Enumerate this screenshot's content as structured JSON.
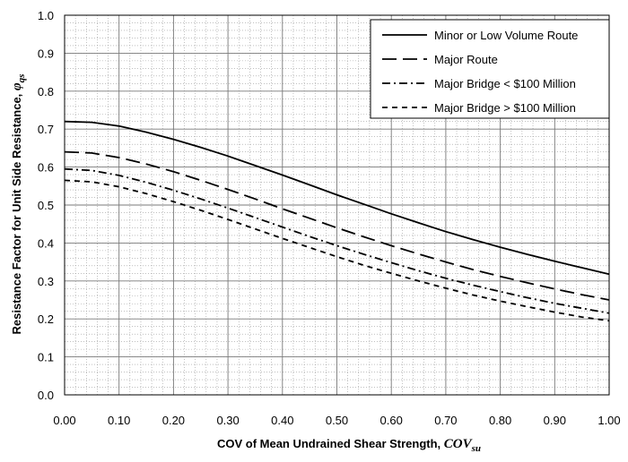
{
  "chart_data": {
    "type": "line",
    "xlabel": "COV of Mean Undrained Shear Strength, ",
    "xlabel_symbol": "COV",
    "xlabel_subscript": "su",
    "ylabel": "Resistance Factor for Unit Side Resistance, ",
    "ylabel_symbol": "φ",
    "ylabel_subscript": "qs",
    "xlim": [
      0.0,
      1.0
    ],
    "ylim": [
      0.0,
      1.0
    ],
    "x_ticks": [
      "0.00",
      "0.10",
      "0.20",
      "0.30",
      "0.40",
      "0.50",
      "0.60",
      "0.70",
      "0.80",
      "0.90",
      "1.00"
    ],
    "y_ticks": [
      "0.0",
      "0.1",
      "0.2",
      "0.3",
      "0.4",
      "0.5",
      "0.6",
      "0.7",
      "0.8",
      "0.9",
      "1.0"
    ],
    "grid": true,
    "legend_position": "top-right",
    "x": [
      0.0,
      0.05,
      0.1,
      0.15,
      0.2,
      0.25,
      0.3,
      0.35,
      0.4,
      0.45,
      0.5,
      0.55,
      0.6,
      0.65,
      0.7,
      0.75,
      0.8,
      0.85,
      0.9,
      0.95,
      1.0
    ],
    "series": [
      {
        "name": "Minor or Low Volume Route",
        "dash": "solid",
        "values": [
          0.72,
          0.718,
          0.708,
          0.692,
          0.673,
          0.652,
          0.629,
          0.604,
          0.579,
          0.553,
          0.527,
          0.502,
          0.477,
          0.453,
          0.43,
          0.409,
          0.389,
          0.37,
          0.352,
          0.335,
          0.318
        ]
      },
      {
        "name": "Major Route",
        "dash": "long-dash",
        "values": [
          0.64,
          0.637,
          0.625,
          0.608,
          0.588,
          0.565,
          0.541,
          0.516,
          0.49,
          0.465,
          0.44,
          0.416,
          0.393,
          0.371,
          0.35,
          0.33,
          0.312,
          0.295,
          0.279,
          0.264,
          0.25
        ]
      },
      {
        "name": "Major Bridge < $100 Million",
        "dash": "dash-dot",
        "values": [
          0.595,
          0.591,
          0.578,
          0.56,
          0.539,
          0.516,
          0.492,
          0.467,
          0.442,
          0.417,
          0.393,
          0.37,
          0.348,
          0.327,
          0.307,
          0.289,
          0.272,
          0.256,
          0.241,
          0.228,
          0.215
        ]
      },
      {
        "name": "Major Bridge > $100 Million",
        "dash": "short-dash",
        "values": [
          0.565,
          0.561,
          0.548,
          0.53,
          0.509,
          0.486,
          0.462,
          0.437,
          0.412,
          0.388,
          0.364,
          0.341,
          0.32,
          0.3,
          0.281,
          0.263,
          0.247,
          0.232,
          0.218,
          0.205,
          0.195
        ]
      }
    ]
  }
}
